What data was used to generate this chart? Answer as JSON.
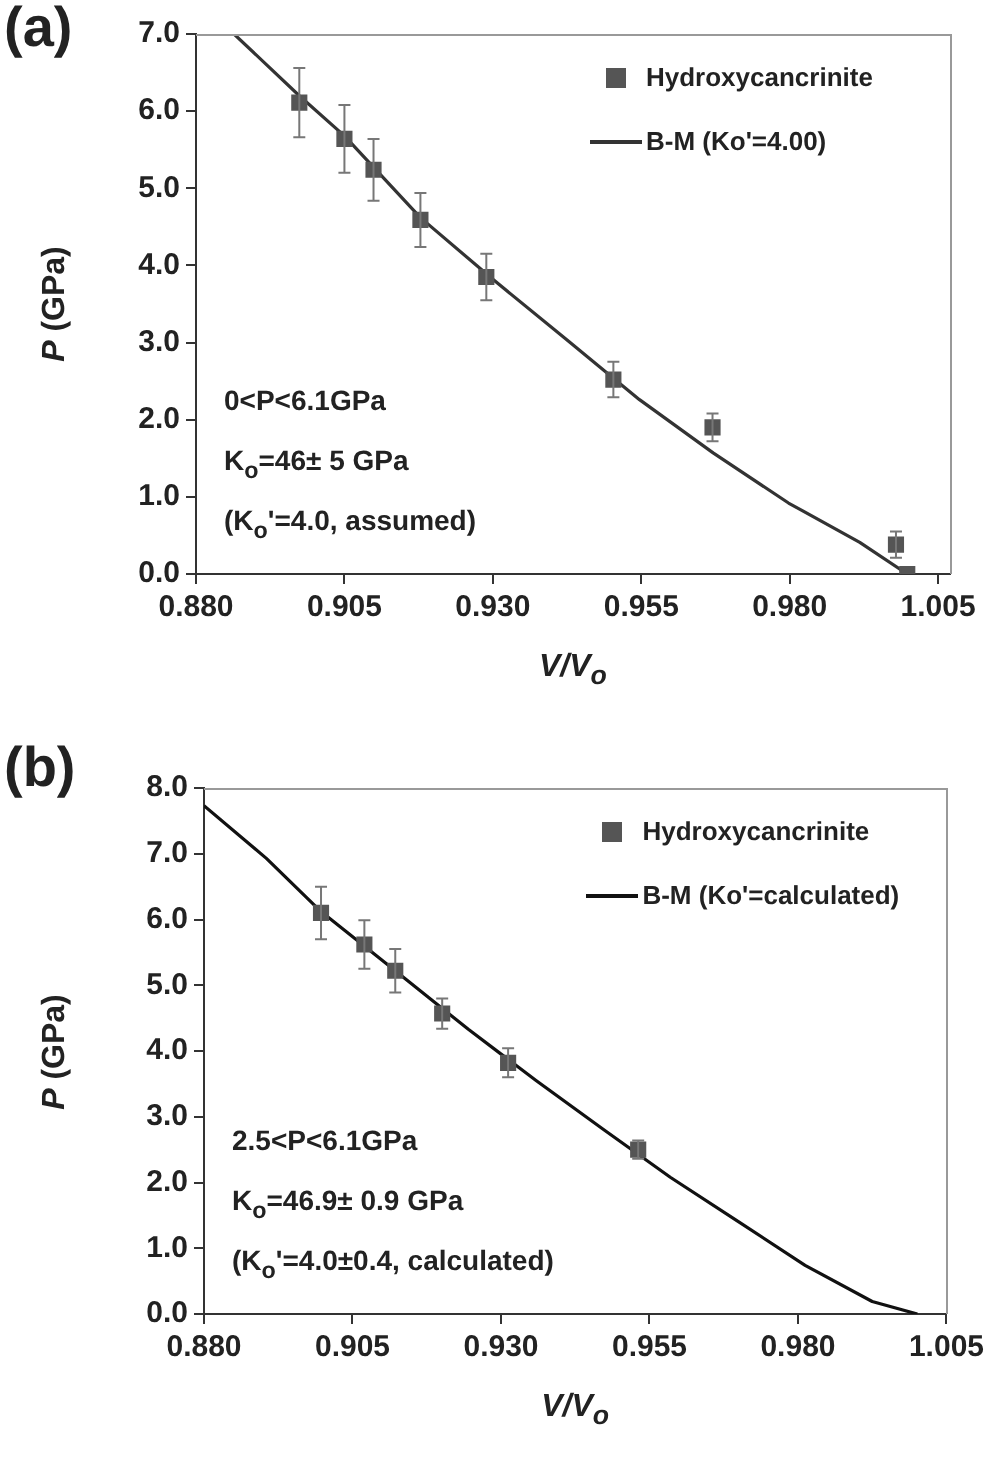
{
  "chart_data": [
    {
      "type": "scatter",
      "title": "(a)",
      "xlabel": "V/V$_{o}$",
      "ylabel": "P (GPa)",
      "xlim": [
        0.88,
        1.007
      ],
      "xticks": [
        {
          "value": 0.88,
          "label": "0.880"
        },
        {
          "value": 0.905,
          "label": "0.905"
        },
        {
          "value": 0.93,
          "label": "0.930"
        },
        {
          "value": 0.955,
          "label": "0.955"
        },
        {
          "value": 0.98,
          "label": "0.980"
        },
        {
          "value": 1.005,
          "label": "1.005"
        }
      ],
      "ylim": [
        0,
        7
      ],
      "yticks": [
        {
          "value": 0,
          "label": "0.0"
        },
        {
          "value": 1,
          "label": "1.0"
        },
        {
          "value": 2,
          "label": "2.0"
        },
        {
          "value": 3,
          "label": "3.0"
        },
        {
          "value": 4,
          "label": "4.0"
        },
        {
          "value": 5,
          "label": "5.0"
        },
        {
          "value": 6,
          "label": "6.0"
        },
        {
          "value": 7,
          "label": "7.0"
        }
      ],
      "legend": "top right",
      "series": [
        {
          "name": "Hydroxycancrinite",
          "marker": "square",
          "color": "#555555",
          "x": [
            0.8974,
            0.905,
            0.9099,
            0.9178,
            0.9289,
            0.9503,
            0.967,
            0.9979,
            0.9998
          ],
          "values": [
            6.11,
            5.64,
            5.24,
            4.59,
            3.85,
            2.52,
            1.9,
            0.38,
            0
          ],
          "errors": [
            0.45,
            0.44,
            0.4,
            0.35,
            0.3,
            0.23,
            0.18,
            0.17,
            null
          ]
        },
        {
          "name": "B-M (Ko'=4.00)",
          "type": "line",
          "marker": "none",
          "color": "#333333",
          "x": [
            0.8864,
            0.8974,
            0.905,
            0.9178,
            0.93,
            0.9424,
            0.9547,
            0.9671,
            0.9798,
            0.9918,
            0.9998
          ],
          "values": [
            7,
            6.2,
            5.68,
            4.62,
            3.82,
            3.04,
            2.26,
            1.57,
            0.92,
            0.41,
            0
          ]
        }
      ],
      "annotations": [
        "0<P<6.1GPa",
        "K$_{o}$=46± 5 GPa",
        "(K$_{o}$'=4.0, assumed)"
      ]
    },
    {
      "type": "scatter",
      "title": "(b)",
      "xlabel": "V/V$_{o}$",
      "ylabel": "P (GPa)",
      "xlim": [
        0.88,
        1.005
      ],
      "xticks": [
        {
          "value": 0.88,
          "label": "0.880"
        },
        {
          "value": 0.905,
          "label": "0.905"
        },
        {
          "value": 0.93,
          "label": "0.930"
        },
        {
          "value": 0.955,
          "label": "0.955"
        },
        {
          "value": 0.98,
          "label": "0.980"
        },
        {
          "value": 1.005,
          "label": "1.005"
        }
      ],
      "ylim": [
        0,
        8
      ],
      "yticks": [
        {
          "value": 0,
          "label": "0.0"
        },
        {
          "value": 1,
          "label": "1.0"
        },
        {
          "value": 2,
          "label": "2.0"
        },
        {
          "value": 3,
          "label": "3.0"
        },
        {
          "value": 4,
          "label": "4.0"
        },
        {
          "value": 5,
          "label": "5.0"
        },
        {
          "value": 6,
          "label": "6.0"
        },
        {
          "value": 7,
          "label": "7.0"
        },
        {
          "value": 8,
          "label": "8.0"
        }
      ],
      "legend": "top right",
      "series": [
        {
          "name": "Hydroxycancrinite",
          "marker": "square",
          "color": "#555555",
          "x": [
            0.8997,
            0.907,
            0.9122,
            0.9201,
            0.9312,
            0.9531
          ],
          "values": [
            6.1,
            5.62,
            5.22,
            4.57,
            3.82,
            2.5
          ],
          "errors": [
            0.4,
            0.37,
            0.33,
            0.23,
            0.22,
            0.14
          ]
        },
        {
          "name": "B-M (Ko'=calculated)",
          "type": "line",
          "marker": "none",
          "color": "#111111",
          "x": [
            0.88,
            0.8905,
            0.8997,
            0.9122,
            0.9245,
            0.9359,
            0.9472,
            0.9585,
            0.9699,
            0.9812,
            0.9925,
            1.0001
          ],
          "values": [
            7.73,
            6.93,
            6.12,
            5.22,
            4.33,
            3.55,
            2.81,
            2.08,
            1.41,
            0.74,
            0.19,
            0
          ]
        }
      ],
      "annotations": [
        "2.5<P<6.1GPa",
        "K$_{o}$=46.9± 0.9 GPa",
        "(K$_{o}$'=4.0±0.4, calculated)"
      ]
    }
  ]
}
